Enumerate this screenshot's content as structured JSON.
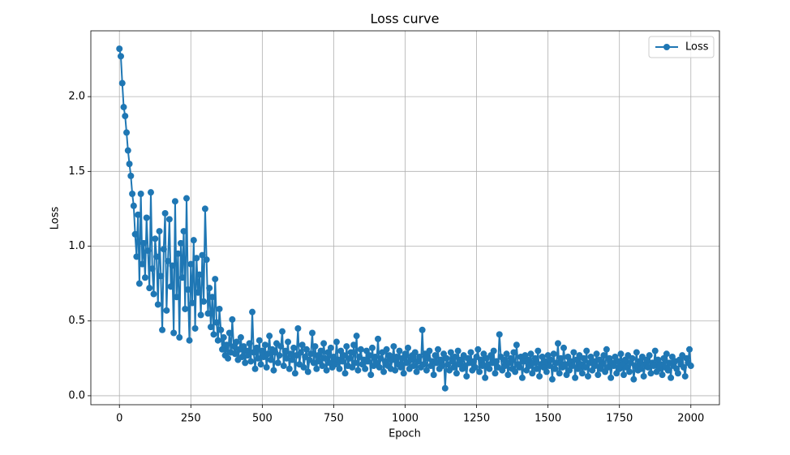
{
  "chart_data": {
    "type": "line",
    "title": "Loss curve",
    "x_label": "Epoch",
    "y_label": "Loss",
    "xlim": [
      -100,
      2100
    ],
    "ylim": [
      -0.06,
      2.44
    ],
    "xticks": [
      0,
      250,
      500,
      750,
      1000,
      1250,
      1500,
      1750,
      2000
    ],
    "yticks": [
      {
        "value": 0,
        "label": "0.0"
      },
      0.5,
      {
        "value": 1,
        "label": "1.0"
      },
      1.5,
      {
        "value": 2,
        "label": "2.0"
      }
    ],
    "grid": true,
    "legend": "upper right",
    "x": [
      0,
      5,
      10,
      15,
      20,
      25,
      30,
      35,
      40,
      45,
      50,
      55,
      60,
      65,
      70,
      75,
      80,
      85,
      90,
      95,
      100,
      105,
      110,
      115,
      120,
      125,
      130,
      135,
      140,
      145,
      150,
      155,
      160,
      165,
      170,
      175,
      180,
      185,
      190,
      195,
      200,
      205,
      210,
      215,
      220,
      225,
      230,
      235,
      240,
      245,
      250,
      255,
      260,
      265,
      270,
      275,
      280,
      285,
      290,
      295,
      300,
      305,
      310,
      315,
      320,
      325,
      330,
      335,
      340,
      345,
      350,
      355,
      360,
      365,
      370,
      375,
      380,
      385,
      390,
      395,
      400,
      405,
      410,
      415,
      420,
      425,
      430,
      435,
      440,
      445,
      450,
      455,
      460,
      465,
      470,
      475,
      480,
      485,
      490,
      495,
      500,
      505,
      510,
      515,
      520,
      525,
      530,
      535,
      540,
      545,
      550,
      555,
      560,
      565,
      570,
      575,
      580,
      585,
      590,
      595,
      600,
      605,
      610,
      615,
      620,
      625,
      630,
      635,
      640,
      645,
      650,
      655,
      660,
      665,
      670,
      675,
      680,
      685,
      690,
      695,
      700,
      705,
      710,
      715,
      720,
      725,
      730,
      735,
      740,
      745,
      750,
      755,
      760,
      765,
      770,
      775,
      780,
      785,
      790,
      795,
      800,
      805,
      810,
      815,
      820,
      825,
      830,
      835,
      840,
      845,
      850,
      855,
      860,
      865,
      870,
      875,
      880,
      885,
      890,
      895,
      900,
      905,
      910,
      915,
      920,
      925,
      930,
      935,
      940,
      945,
      950,
      955,
      960,
      965,
      970,
      975,
      980,
      985,
      990,
      995,
      1000,
      1005,
      1010,
      1015,
      1020,
      1025,
      1030,
      1035,
      1040,
      1045,
      1050,
      1055,
      1060,
      1065,
      1070,
      1075,
      1080,
      1085,
      1090,
      1095,
      1100,
      1105,
      1110,
      1115,
      1120,
      1125,
      1130,
      1135,
      1140,
      1145,
      1150,
      1155,
      1160,
      1165,
      1170,
      1175,
      1180,
      1185,
      1190,
      1195,
      1200,
      1205,
      1210,
      1215,
      1220,
      1225,
      1230,
      1235,
      1240,
      1245,
      1250,
      1255,
      1260,
      1265,
      1270,
      1275,
      1280,
      1285,
      1290,
      1295,
      1300,
      1305,
      1310,
      1315,
      1320,
      1325,
      1330,
      1335,
      1340,
      1345,
      1350,
      1355,
      1360,
      1365,
      1370,
      1375,
      1380,
      1385,
      1390,
      1395,
      1400,
      1405,
      1410,
      1415,
      1420,
      1425,
      1430,
      1435,
      1440,
      1445,
      1450,
      1455,
      1460,
      1465,
      1470,
      1475,
      1480,
      1485,
      1490,
      1495,
      1500,
      1505,
      1510,
      1515,
      1520,
      1525,
      1530,
      1535,
      1540,
      1545,
      1550,
      1555,
      1560,
      1565,
      1570,
      1575,
      1580,
      1585,
      1590,
      1595,
      1600,
      1605,
      1610,
      1615,
      1620,
      1625,
      1630,
      1635,
      1640,
      1645,
      1650,
      1655,
      1660,
      1665,
      1670,
      1675,
      1680,
      1685,
      1690,
      1695,
      1700,
      1705,
      1710,
      1715,
      1720,
      1725,
      1730,
      1735,
      1740,
      1745,
      1750,
      1755,
      1760,
      1765,
      1770,
      1775,
      1780,
      1785,
      1790,
      1795,
      1800,
      1805,
      1810,
      1815,
      1820,
      1825,
      1830,
      1835,
      1840,
      1845,
      1850,
      1855,
      1860,
      1865,
      1870,
      1875,
      1880,
      1885,
      1890,
      1895,
      1900,
      1905,
      1910,
      1915,
      1920,
      1925,
      1930,
      1935,
      1940,
      1945,
      1950,
      1955,
      1960,
      1965,
      1970,
      1975,
      1980,
      1985,
      1990,
      1995,
      2000
    ],
    "series": [
      {
        "name": "Loss",
        "color": "#1f77b4",
        "values": [
          2.32,
          2.27,
          2.09,
          1.93,
          1.87,
          1.76,
          1.64,
          1.55,
          1.47,
          1.35,
          1.27,
          1.08,
          0.93,
          1.21,
          0.75,
          1.35,
          0.88,
          1.02,
          0.79,
          1.19,
          0.97,
          0.72,
          1.36,
          0.85,
          0.68,
          1.05,
          0.93,
          0.61,
          1.1,
          0.8,
          0.44,
          0.98,
          1.22,
          0.57,
          0.9,
          1.18,
          0.73,
          0.87,
          0.42,
          1.3,
          0.66,
          0.95,
          0.39,
          1.02,
          0.79,
          1.1,
          0.58,
          1.32,
          0.71,
          0.37,
          0.88,
          0.62,
          1.04,
          0.45,
          0.92,
          0.69,
          0.81,
          0.54,
          0.94,
          0.63,
          1.25,
          0.91,
          0.55,
          0.72,
          0.46,
          0.66,
          0.41,
          0.78,
          0.49,
          0.37,
          0.58,
          0.44,
          0.31,
          0.39,
          0.27,
          0.34,
          0.25,
          0.42,
          0.29,
          0.51,
          0.33,
          0.28,
          0.36,
          0.24,
          0.31,
          0.39,
          0.26,
          0.33,
          0.22,
          0.3,
          0.27,
          0.35,
          0.23,
          0.56,
          0.29,
          0.18,
          0.32,
          0.25,
          0.37,
          0.21,
          0.3,
          0.26,
          0.34,
          0.19,
          0.28,
          0.4,
          0.24,
          0.31,
          0.17,
          0.29,
          0.35,
          0.22,
          0.27,
          0.33,
          0.43,
          0.2,
          0.3,
          0.25,
          0.36,
          0.18,
          0.28,
          0.24,
          0.32,
          0.15,
          0.27,
          0.45,
          0.21,
          0.29,
          0.34,
          0.19,
          0.26,
          0.31,
          0.16,
          0.24,
          0.28,
          0.42,
          0.22,
          0.33,
          0.18,
          0.27,
          0.23,
          0.3,
          0.2,
          0.35,
          0.25,
          0.17,
          0.29,
          0.22,
          0.32,
          0.19,
          0.26,
          0.21,
          0.36,
          0.24,
          0.18,
          0.3,
          0.23,
          0.27,
          0.15,
          0.33,
          0.2,
          0.25,
          0.29,
          0.19,
          0.34,
          0.22,
          0.4,
          0.17,
          0.26,
          0.31,
          0.21,
          0.24,
          0.18,
          0.3,
          0.23,
          0.27,
          0.14,
          0.32,
          0.2,
          0.26,
          0.22,
          0.38,
          0.19,
          0.25,
          0.29,
          0.16,
          0.23,
          0.31,
          0.2,
          0.27,
          0.18,
          0.24,
          0.33,
          0.17,
          0.26,
          0.21,
          0.3,
          0.19,
          0.25,
          0.15,
          0.28,
          0.22,
          0.32,
          0.18,
          0.24,
          0.27,
          0.2,
          0.29,
          0.16,
          0.23,
          0.26,
          0.19,
          0.44,
          0.21,
          0.28,
          0.17,
          0.25,
          0.3,
          0.2,
          0.23,
          0.14,
          0.27,
          0.22,
          0.31,
          0.18,
          0.24,
          0.2,
          0.28,
          0.05,
          0.25,
          0.21,
          0.17,
          0.29,
          0.23,
          0.19,
          0.26,
          0.15,
          0.3,
          0.21,
          0.24,
          0.18,
          0.27,
          0.2,
          0.13,
          0.25,
          0.22,
          0.29,
          0.17,
          0.23,
          0.19,
          0.26,
          0.31,
          0.16,
          0.24,
          0.2,
          0.28,
          0.12,
          0.25,
          0.21,
          0.18,
          0.27,
          0.22,
          0.3,
          0.15,
          0.23,
          0.19,
          0.41,
          0.26,
          0.17,
          0.24,
          0.2,
          0.28,
          0.14,
          0.22,
          0.25,
          0.18,
          0.29,
          0.16,
          0.34,
          0.21,
          0.19,
          0.26,
          0.12,
          0.23,
          0.27,
          0.17,
          0.24,
          0.2,
          0.28,
          0.15,
          0.22,
          0.25,
          0.18,
          0.3,
          0.13,
          0.21,
          0.26,
          0.19,
          0.23,
          0.16,
          0.27,
          0.2,
          0.24,
          0.11,
          0.28,
          0.18,
          0.22,
          0.35,
          0.15,
          0.25,
          0.19,
          0.32,
          0.21,
          0.14,
          0.26,
          0.17,
          0.23,
          0.2,
          0.29,
          0.12,
          0.24,
          0.18,
          0.27,
          0.21,
          0.15,
          0.25,
          0.19,
          0.3,
          0.13,
          0.22,
          0.26,
          0.17,
          0.23,
          0.2,
          0.28,
          0.14,
          0.24,
          0.18,
          0.21,
          0.27,
          0.16,
          0.31,
          0.19,
          0.25,
          0.12,
          0.22,
          0.2,
          0.26,
          0.15,
          0.23,
          0.18,
          0.28,
          0.21,
          0.14,
          0.24,
          0.19,
          0.27,
          0.16,
          0.22,
          0.25,
          0.11,
          0.2,
          0.29,
          0.17,
          0.23,
          0.18,
          0.26,
          0.13,
          0.21,
          0.24,
          0.19,
          0.27,
          0.15,
          0.22,
          0.2,
          0.3,
          0.16,
          0.24,
          0.18,
          0.21,
          0.14,
          0.25,
          0.19,
          0.28,
          0.17,
          0.22,
          0.12,
          0.26,
          0.2,
          0.23,
          0.18,
          0.15,
          0.24,
          0.21,
          0.27,
          0.19,
          0.13,
          0.25,
          0.22,
          0.31,
          0.2
        ]
      }
    ]
  }
}
